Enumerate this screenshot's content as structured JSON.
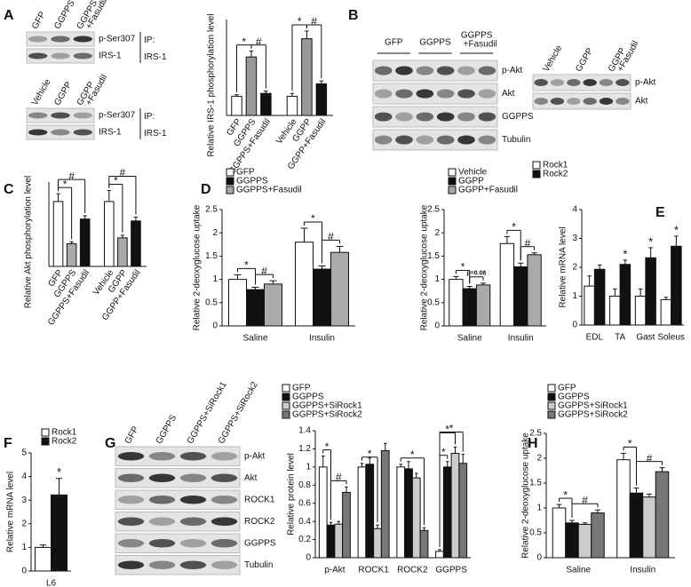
{
  "panel_labels": [
    "A",
    "B",
    "C",
    "D",
    "E",
    "F",
    "G",
    "H"
  ],
  "blots": [
    {
      "lanes": [
        [
          "GFP"
        ],
        [
          "GGPPS"
        ],
        [
          "GGPPS",
          "+Fasudil"
        ]
      ],
      "rows": [
        "p-Ser307",
        "IRS-1"
      ],
      "ip": [
        "IP:",
        "IRS-1"
      ]
    },
    {
      "lanes": [
        [
          "Vehicle"
        ],
        [
          "GGPP"
        ],
        [
          "GGPP",
          "+Fasudil"
        ]
      ],
      "rows": [
        "p-Ser307",
        "IRS-1"
      ],
      "ip": [
        "IP:",
        "IRS-1"
      ]
    },
    {
      "lanes": [
        [
          "GFP"
        ],
        [
          "GGPPS"
        ],
        [
          "GGPPS",
          "+Fasudil"
        ]
      ],
      "rows": [
        "p-Akt",
        "Akt",
        "GGPPS",
        "Tubulin"
      ]
    },
    {
      "lanes": [
        [
          "Vehicle"
        ],
        [
          "GGPP"
        ],
        [
          "GGPP",
          "+Fasudil"
        ]
      ],
      "rows": [
        "p-Akt",
        "Akt"
      ]
    },
    {
      "lanes": [
        [
          "GFP"
        ],
        [
          "GGPPS"
        ],
        [
          "GGPPS+SiRock1"
        ],
        [
          "GGPPS+SiRock2"
        ]
      ],
      "rows": [
        "p-Akt",
        "Akt",
        "ROCK1",
        "ROCK2",
        "GGPPS",
        "Tubulin"
      ]
    }
  ],
  "chart_data": [
    {
      "type": "bar",
      "y_label": "Relative IRS-1 phosphorylation level",
      "categories": [
        "GFP",
        "GGPPS",
        "GGPPS+Fasudil",
        "Vehicle",
        "GGPP",
        "GGPP+Fasudil"
      ],
      "values": [
        1,
        3.05,
        1.15,
        1,
        4.0,
        1.65
      ],
      "errors": [
        0.08,
        0.3,
        0.12,
        0.15,
        0.4,
        0.15
      ],
      "colors": [
        "#ffffff",
        "#999999",
        "#111111",
        "#ffffff",
        "#999999",
        "#111111"
      ],
      "ylim": [
        0,
        5
      ],
      "annotations": [
        "*",
        "#",
        "*",
        "#"
      ]
    },
    {
      "type": "bar",
      "y_label": "Relative Akt phosphorylation level",
      "categories": [
        "GFP",
        "GGPPS",
        "GGPPS+Fasudil",
        "Vehicle",
        "GGPP",
        "GGPP+Fasudil"
      ],
      "values": [
        1,
        0.35,
        0.73,
        1,
        0.44,
        0.7
      ],
      "errors": [
        0.12,
        0.03,
        0.05,
        0.17,
        0.04,
        0.06
      ],
      "colors": [
        "#ffffff",
        "#aaaaaa",
        "#111111",
        "#ffffff",
        "#aaaaaa",
        "#111111"
      ],
      "ylim": [
        0,
        1.3
      ],
      "annotations": [
        "*",
        "#",
        "*",
        "#"
      ]
    },
    {
      "type": "grouped_bar",
      "y_label": "Relative 2-deoxyglucose uptake",
      "categories": [
        "Saline",
        "Insulin"
      ],
      "series": [
        {
          "name": "GFP",
          "color": "#ffffff",
          "values": [
            1.0,
            1.8
          ],
          "errors": [
            0.1,
            0.3
          ]
        },
        {
          "name": "GGPPS",
          "color": "#111111",
          "values": [
            0.78,
            1.22
          ],
          "errors": [
            0.05,
            0.07
          ]
        },
        {
          "name": "GGPPS+Fasudil",
          "color": "#aaaaaa",
          "values": [
            0.9,
            1.58
          ],
          "errors": [
            0.07,
            0.13
          ]
        }
      ],
      "ylim": [
        0,
        2.5
      ],
      "yticks": [
        0,
        0.5,
        1,
        1.5,
        2,
        2.5
      ],
      "annotations": [
        "*",
        "#",
        "*",
        "#"
      ]
    },
    {
      "type": "grouped_bar",
      "y_label": "Relative 2-deoxyglucose uptake",
      "categories": [
        "Saline",
        "Insulin"
      ],
      "series": [
        {
          "name": "Vehicle",
          "color": "#ffffff",
          "values": [
            1.0,
            1.77
          ],
          "errors": [
            0.06,
            0.15
          ]
        },
        {
          "name": "GGPP",
          "color": "#111111",
          "values": [
            0.8,
            1.27
          ],
          "errors": [
            0.05,
            0.08
          ]
        },
        {
          "name": "GGPP+Fasudil",
          "color": "#aaaaaa",
          "values": [
            0.88,
            1.53
          ],
          "errors": [
            0.04,
            0.04
          ]
        }
      ],
      "ylim": [
        0,
        2.5
      ],
      "yticks": [
        0,
        0.5,
        1,
        1.5,
        2,
        2.5
      ],
      "annotations": [
        "*",
        "p=0.06",
        "*",
        "#"
      ]
    },
    {
      "type": "grouped_bar",
      "y_label": "Relative  mRNA level",
      "categories": [
        "EDL",
        "TA",
        "Gast",
        "Soleus"
      ],
      "series": [
        {
          "name": "Rock1",
          "color": "#ffffff",
          "values": [
            1.35,
            1.0,
            1.0,
            0.88
          ],
          "errors": [
            0.35,
            0.25,
            0.25,
            0.08
          ]
        },
        {
          "name": "Rock2",
          "color": "#111111",
          "values": [
            1.93,
            2.1,
            2.33,
            2.73
          ],
          "errors": [
            0.15,
            0.15,
            0.35,
            0.35
          ]
        }
      ],
      "ylim": [
        0,
        4
      ],
      "yticks": [
        0,
        1,
        2,
        3,
        4
      ],
      "annotations": [
        "*",
        "*",
        "*"
      ]
    },
    {
      "type": "grouped_bar",
      "y_label": "Relative  mRNA level",
      "categories": [
        "L6"
      ],
      "series": [
        {
          "name": "Rock1",
          "color": "#ffffff",
          "values": [
            1.0
          ],
          "errors": [
            0.1
          ]
        },
        {
          "name": "Rock2",
          "color": "#111111",
          "values": [
            3.22
          ],
          "errors": [
            0.7
          ]
        }
      ],
      "ylim": [
        0,
        5
      ],
      "yticks": [
        0,
        1,
        2,
        3,
        4,
        5
      ],
      "annotations": [
        "*"
      ]
    },
    {
      "type": "grouped_bar",
      "y_label": "Relative protein level",
      "categories": [
        "p-Akt",
        "ROCK1",
        "ROCK2",
        "GGPPS"
      ],
      "series": [
        {
          "name": "GFP",
          "color": "#ffffff",
          "values": [
            1.0,
            1.0,
            1.0,
            0.07
          ],
          "errors": [
            0.12,
            0.04,
            0.03,
            0.02
          ]
        },
        {
          "name": "GGPPS",
          "color": "#111111",
          "values": [
            0.36,
            1.03,
            0.98,
            1.0
          ],
          "errors": [
            0.03,
            0.07,
            0.08,
            0.06
          ]
        },
        {
          "name": "GGPPS+SiRock1",
          "color": "#cccccc",
          "values": [
            0.37,
            0.32,
            0.88,
            1.15
          ],
          "errors": [
            0.03,
            0.04,
            0.05,
            0.07
          ]
        },
        {
          "name": "GGPPS+SiRock2",
          "color": "#777777",
          "values": [
            0.72,
            1.18,
            0.3,
            1.04
          ],
          "errors": [
            0.06,
            0.08,
            0.03,
            0.1
          ]
        }
      ],
      "ylim": [
        0,
        1.4
      ],
      "yticks": [
        0,
        0.2,
        0.4,
        0.6,
        0.8,
        1,
        1.2,
        1.4
      ],
      "annotations": [
        "*",
        "#",
        "*",
        "*",
        "*",
        "*",
        "*"
      ]
    },
    {
      "type": "grouped_bar",
      "y_label": "Relative 2-deoxyglucose uptake",
      "categories": [
        "Saline",
        "Insulin"
      ],
      "series": [
        {
          "name": "GFP",
          "color": "#ffffff",
          "values": [
            1.0,
            1.97
          ],
          "errors": [
            0.07,
            0.13
          ]
        },
        {
          "name": "GGPPS",
          "color": "#111111",
          "values": [
            0.7,
            1.3
          ],
          "errors": [
            0.05,
            0.1
          ]
        },
        {
          "name": "GGPPS+SiRock1",
          "color": "#cccccc",
          "values": [
            0.67,
            1.22
          ],
          "errors": [
            0.03,
            0.06
          ]
        },
        {
          "name": "GGPPS+SiRock2",
          "color": "#777777",
          "values": [
            0.9,
            1.73
          ],
          "errors": [
            0.06,
            0.08
          ]
        }
      ],
      "ylim": [
        0,
        2.5
      ],
      "yticks": [
        0,
        0.5,
        1,
        1.5,
        2,
        2.5
      ],
      "annotations": [
        "*",
        "#",
        "*",
        "#"
      ]
    }
  ]
}
